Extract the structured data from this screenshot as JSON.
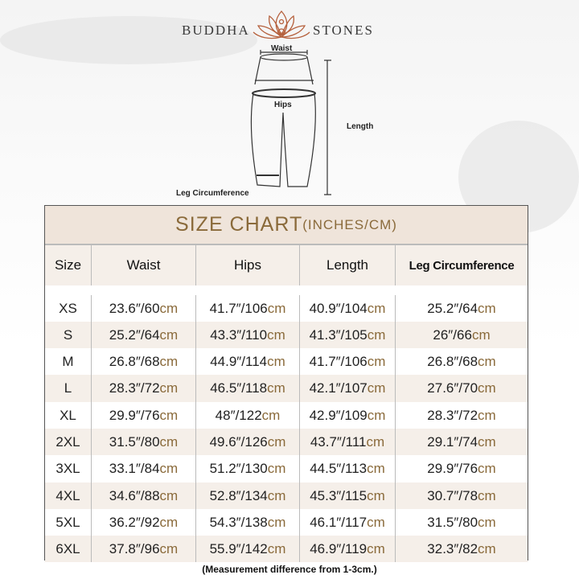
{
  "brand": {
    "left": "BUDDHA",
    "right": "STONES",
    "logo_icon": "lotus-meditation-icon",
    "logo_color": "#b5603c"
  },
  "diagram": {
    "waist": "Waist",
    "hips": "Hips",
    "length": "Length",
    "leg": "Leg Circumference"
  },
  "table": {
    "title": "SIZE CHART",
    "title_units": "(INCHES/CM)",
    "headers": [
      "Size",
      "Waist",
      "Hips",
      "Length",
      "Leg Circumference"
    ],
    "unit": "cm",
    "rows": [
      [
        "XS",
        "23.6″/60",
        "41.7″/106",
        "40.9″/104",
        "25.2″/64"
      ],
      [
        "S",
        "25.2″/64",
        "43.3″/110",
        "41.3″/105",
        "26″/66"
      ],
      [
        "M",
        "26.8″/68",
        "44.9″/114",
        "41.7″/106",
        "26.8″/68"
      ],
      [
        "L",
        "28.3″/72",
        "46.5″/118",
        "42.1″/107",
        "27.6″/70"
      ],
      [
        "XL",
        "29.9″/76",
        "48″/122",
        "42.9″/109",
        "28.3″/72"
      ],
      [
        "2XL",
        "31.5″/80",
        "49.6″/126",
        "43.7″/111",
        "29.1″/74"
      ],
      [
        "3XL",
        "33.1″/84",
        "51.2″/130",
        "44.5″/113",
        "29.9″/76"
      ],
      [
        "4XL",
        "34.6″/88",
        "52.8″/134",
        "45.3″/115",
        "30.7″/78"
      ],
      [
        "5XL",
        "36.2″/92",
        "54.3″/138",
        "46.1″/117",
        "31.5″/80"
      ],
      [
        "6XL",
        "37.8″/96",
        "55.9″/142",
        "46.9″/119",
        "32.3″/82"
      ]
    ],
    "accent_color": "#8a6a3a",
    "shade_color": "#f5efe9"
  },
  "note": "(Measurement difference from 1-3cm.)"
}
